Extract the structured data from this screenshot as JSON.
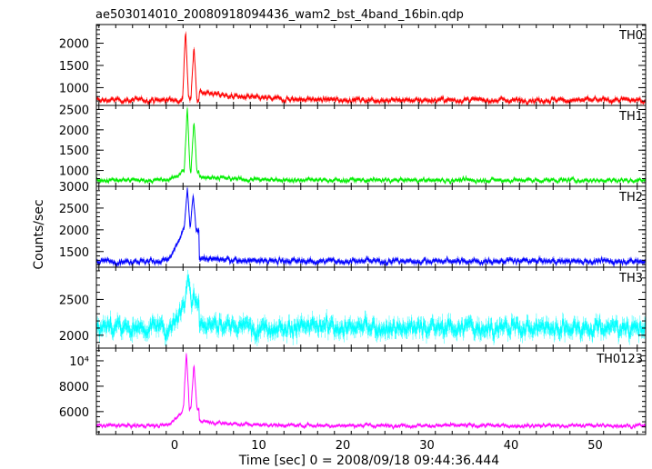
{
  "title": "ae503014010_20080918094436_wam2_bst_4band_16bin.qdp",
  "ylabel": "Counts/sec",
  "xlabel": "Time [sec] 0 = 2008/09/18 09:44:36.444",
  "chart_data": {
    "type": "line",
    "title": "ae503014010_20080918094436_wam2_bst_4band_16bin.qdp",
    "xlabel": "Time [sec] 0 = 2008/09/18 09:44:36.444",
    "ylabel": "Counts/sec",
    "xlim": [
      -9.3,
      56
    ],
    "x_ticks": [
      0,
      10,
      20,
      30,
      40,
      50
    ],
    "x_tick_labels": [
      "0",
      "10",
      "20",
      "30",
      "40",
      "50"
    ],
    "grid": false,
    "bin_seconds": 0.0625,
    "panels": [
      {
        "name": "TH0",
        "color": "#ff0000",
        "ylim": [
          600,
          2420
        ],
        "y_ticks": [
          1000,
          1500,
          2000
        ],
        "y_tick_labels": [
          "1000",
          "1500",
          "2000"
        ],
        "baseline": 720,
        "noise": 45,
        "burst_scale": 1,
        "burst_peaks": [
          {
            "t": 1.3,
            "peak": 2350
          },
          {
            "t": 2.3,
            "peak": 1950
          }
        ],
        "burst_rise": 750,
        "rise_start": -1.5,
        "tail": {
          "amp": 200,
          "tau": 5
        }
      },
      {
        "name": "TH1",
        "color": "#00ee00",
        "ylim": [
          610,
          2600
        ],
        "y_ticks": [
          1000,
          1500,
          2000,
          2500
        ],
        "y_tick_labels": [
          "1000",
          "1500",
          "2000",
          "2500"
        ],
        "baseline": 760,
        "noise": 40,
        "burst_scale": 1,
        "burst_peaks": [
          {
            "t": 1.5,
            "peak": 2550
          },
          {
            "t": 2.3,
            "peak": 2250
          }
        ],
        "burst_rise": 980,
        "rise_start": -1.5,
        "tail": {
          "amp": 100,
          "tau": 4
        }
      },
      {
        "name": "TH2",
        "color": "#0000ff",
        "ylim": [
          1140,
          3000
        ],
        "y_ticks": [
          1500,
          2000,
          2500,
          3000
        ],
        "y_tick_labels": [
          "1500",
          "2000",
          "2500",
          "3000"
        ],
        "baseline": 1280,
        "noise": 50,
        "burst_scale": 1,
        "burst_peaks": [
          {
            "t": 1.5,
            "peak": 2980
          },
          {
            "t": 2.2,
            "peak": 2800
          }
        ],
        "burst_rise": 2000,
        "rise_start": -1.5,
        "tail": {
          "amp": 80,
          "tau": 3
        }
      },
      {
        "name": "TH3",
        "color": "#00ffff",
        "ylim": [
          1820,
          2950
        ],
        "y_ticks": [
          2000,
          2500
        ],
        "y_tick_labels": [
          "2000",
          "2500"
        ],
        "baseline": 2110,
        "noise": 95,
        "burst_scale": 1,
        "burst_peaks": [
          {
            "t": 1.6,
            "peak": 2900
          },
          {
            "t": 2.3,
            "peak": 2700
          }
        ],
        "burst_rise": 2450,
        "rise_start": -1.0,
        "tail": {
          "amp": 60,
          "tau": 3
        }
      },
      {
        "name": "TH0123",
        "color": "#ff00ff",
        "ylim": [
          4200,
          11000
        ],
        "y_ticks": [
          6000,
          8000,
          10000
        ],
        "y_tick_labels": [
          "6000",
          "8000",
          "10⁴"
        ],
        "baseline": 4900,
        "noise": 110,
        "burst_scale": 1,
        "burst_peaks": [
          {
            "t": 1.4,
            "peak": 10800
          },
          {
            "t": 2.3,
            "peak": 9800
          }
        ],
        "burst_rise": 6200,
        "rise_start": -1.5,
        "tail": {
          "amp": 400,
          "tau": 4
        }
      }
    ]
  }
}
